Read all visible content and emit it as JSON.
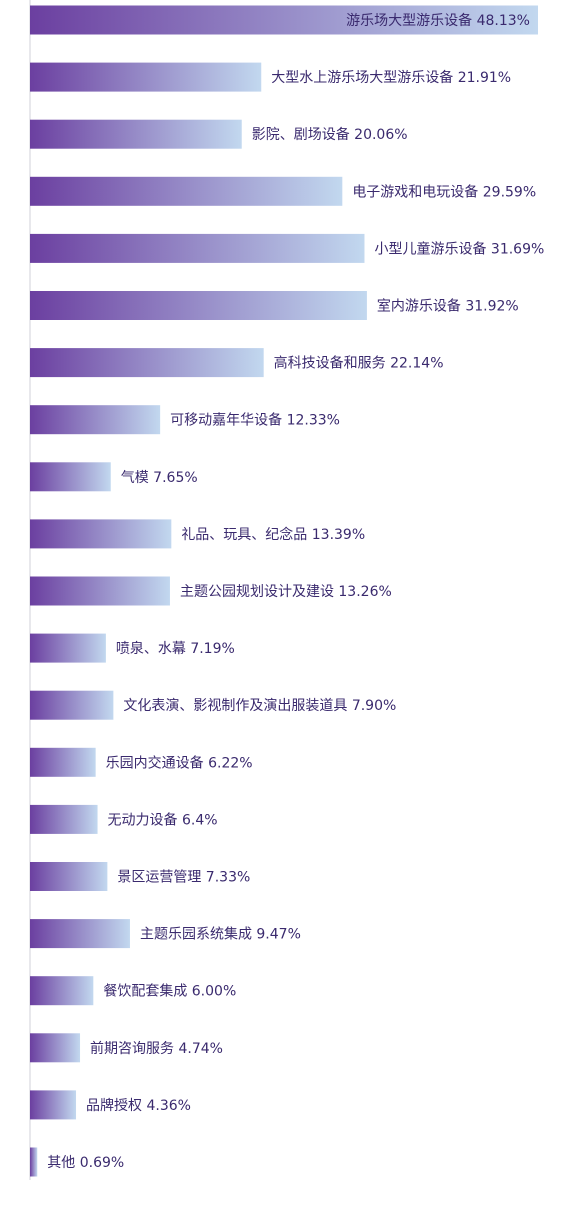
{
  "chart_data": {
    "type": "bar",
    "orientation": "horizontal",
    "title": "",
    "xlabel": "",
    "ylabel": "",
    "xlim": [
      0,
      50
    ],
    "grid": false,
    "legend": "none",
    "colors": {
      "bar_start": "#6b3fa0",
      "bar_end": "#c2d8ef",
      "label": "#3a2a6e",
      "axis": "#d0d0d8"
    },
    "categories": [
      "游乐场大型游乐设备",
      "大型水上游乐场大型游乐设备",
      "影院、剧场设备",
      "电子游戏和电玩设备",
      "小型儿童游乐设备",
      "室内游乐设备",
      "高科技设备和服务",
      "可移动嘉年华设备",
      "气模",
      "礼品、玩具、纪念品",
      "主题公园规划设计及建设",
      "喷泉、水幕",
      "文化表演、影视制作及演出服装道具",
      "乐园内交通设备",
      "无动力设备",
      "景区运营管理",
      "主题乐园系统集成",
      "餐饮配套集成",
      "前期咨询服务",
      "品牌授权",
      "其他"
    ],
    "values": [
      48.13,
      21.91,
      20.06,
      29.59,
      31.69,
      31.92,
      22.14,
      12.33,
      7.65,
      13.39,
      13.26,
      7.19,
      7.9,
      6.22,
      6.4,
      7.33,
      9.47,
      6.0,
      4.74,
      4.36,
      0.69
    ],
    "value_labels": [
      "48.13%",
      "21.91%",
      "20.06%",
      "29.59%",
      "31.69%",
      "31.92%",
      "22.14%",
      "12.33%",
      "7.65%",
      "13.39%",
      "13.26%",
      "7.19%",
      "7.90%",
      "6.22%",
      "6.4%",
      "7.33%",
      "9.47%",
      "6.00%",
      "4.74%",
      "4.36%",
      "0.69%"
    ]
  }
}
